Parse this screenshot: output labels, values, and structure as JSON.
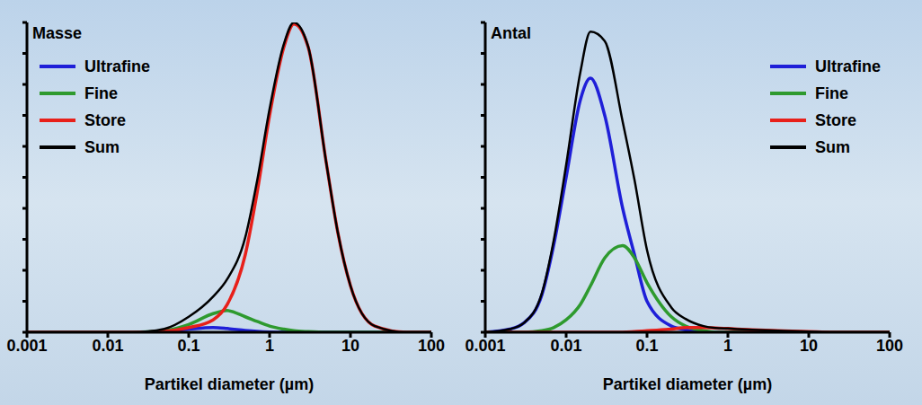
{
  "chart_data": [
    {
      "type": "line",
      "title": "Masse",
      "x_label": "Partikel diameter (µm)",
      "log": "x",
      "grid": false,
      "legend": "upper left",
      "tick_labels": "x",
      "xlim": [
        0.001,
        100
      ],
      "xticks": [
        0.001,
        0.01,
        0.1,
        1,
        10,
        100
      ],
      "ylim": [
        0,
        100
      ],
      "yticks": [
        0,
        10,
        20,
        30,
        40,
        50,
        60,
        70,
        80,
        90,
        100
      ],
      "x": [
        0.001,
        0.002,
        0.005,
        0.01,
        0.02,
        0.05,
        0.1,
        0.2,
        0.3,
        0.5,
        0.7,
        1,
        1.5,
        2,
        3,
        5,
        7,
        10,
        20,
        50,
        100
      ],
      "series": [
        {
          "name": "Ultrafine",
          "color": "#1f1fd8",
          "values": [
            0,
            0,
            0,
            0,
            0,
            0.3,
            1,
            1.5,
            1.2,
            0.6,
            0.3,
            0.1,
            0,
            0,
            0,
            0,
            0,
            0,
            0,
            0,
            0
          ]
        },
        {
          "name": "Fine",
          "color": "#2e9a2e",
          "values": [
            0,
            0,
            0,
            0,
            0,
            0.5,
            2.5,
            6,
            7,
            5,
            3.5,
            2,
            1,
            0.5,
            0.2,
            0,
            0,
            0,
            0,
            0,
            0
          ]
        },
        {
          "name": "Store",
          "color": "#e8201a",
          "values": [
            0,
            0,
            0,
            0,
            0,
            0.3,
            1.5,
            4,
            9,
            25,
            45,
            70,
            92,
            99.5,
            92,
            55,
            32,
            15,
            2,
            0,
            0
          ]
        },
        {
          "name": "Sum",
          "color": "#000000",
          "values": [
            0,
            0,
            0,
            0,
            0,
            1.1,
            5,
            11.5,
            17.2,
            30.6,
            48.8,
            72.1,
            93,
            100,
            92.2,
            55,
            32,
            15,
            2,
            0,
            0
          ]
        }
      ]
    },
    {
      "type": "line",
      "title": "Antal",
      "x_label": "Partikel diameter (µm)",
      "log": "x",
      "grid": false,
      "legend": "upper right",
      "tick_labels": "x",
      "xlim": [
        0.001,
        100
      ],
      "xticks": [
        0.001,
        0.01,
        0.1,
        1,
        10,
        100
      ],
      "ylim": [
        0,
        100
      ],
      "yticks": [
        0,
        10,
        20,
        30,
        40,
        50,
        60,
        70,
        80,
        90,
        100
      ],
      "x": [
        0.001,
        0.002,
        0.003,
        0.005,
        0.007,
        0.01,
        0.015,
        0.02,
        0.03,
        0.05,
        0.07,
        0.1,
        0.2,
        0.3,
        0.5,
        0.7,
        1,
        2,
        5,
        10,
        20,
        50,
        100
      ],
      "series": [
        {
          "name": "Ultrafine",
          "color": "#1f1fd8",
          "values": [
            0,
            1,
            3,
            12,
            28,
            50,
            75,
            82,
            70,
            40,
            25,
            10,
            2,
            0.8,
            0,
            0,
            0,
            0,
            0,
            0,
            0,
            0,
            0
          ]
        },
        {
          "name": "Fine",
          "color": "#2e9a2e",
          "values": [
            0,
            0,
            0,
            0.5,
            1.5,
            4,
            9,
            15,
            24,
            28,
            24,
            16,
            5,
            2,
            0.5,
            0,
            0,
            0,
            0,
            0,
            0,
            0,
            0
          ]
        },
        {
          "name": "Store",
          "color": "#e8201a",
          "values": [
            0,
            0,
            0,
            0,
            0,
            0,
            0,
            0,
            0,
            0,
            0.2,
            0.5,
            1,
            1.5,
            1.5,
            1.4,
            1.2,
            0.8,
            0.4,
            0.2,
            0,
            0,
            0
          ]
        },
        {
          "name": "Sum",
          "color": "#000000",
          "values": [
            0,
            1,
            3,
            12.5,
            29.5,
            54,
            84,
            97,
            94,
            68,
            49.2,
            26.5,
            8,
            4.3,
            2,
            1.4,
            1.2,
            0.8,
            0.4,
            0.2,
            0,
            0,
            0
          ]
        }
      ]
    }
  ]
}
